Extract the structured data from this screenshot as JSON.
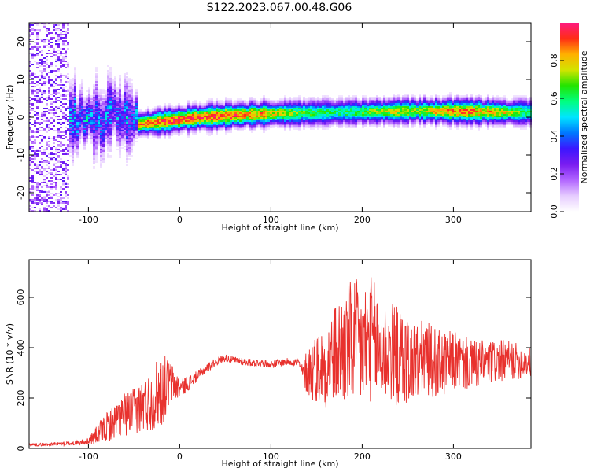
{
  "figure": {
    "title": "S122.2023.067.00.48.G06"
  },
  "colormap": {
    "stops": [
      "#ffffff",
      "#e6ccff",
      "#b266ff",
      "#7a1cf0",
      "#3b16ff",
      "#0077ff",
      "#00e5ff",
      "#00ff7f",
      "#22e400",
      "#d2e400",
      "#ffb000",
      "#ff2d16",
      "#ff1a80"
    ]
  },
  "chart_data": [
    {
      "type": "heatmap",
      "title": "",
      "xlabel": "Height of straight line (km)",
      "ylabel": "Frequency (Hz)",
      "xlim": [
        -165,
        385
      ],
      "ylim": [
        -25,
        25
      ],
      "xticks": [
        -100,
        0,
        100,
        200,
        300
      ],
      "yticks": [
        -20,
        -10,
        0,
        10,
        20
      ],
      "colorbar": {
        "label": "Normalized spectral amplitude",
        "range": [
          0,
          1
        ],
        "ticks": [
          0.0,
          0.2,
          0.4,
          0.6,
          0.8
        ]
      },
      "ridge": {
        "x": [
          -45,
          -20,
          0,
          20,
          40,
          60,
          80,
          100,
          120,
          140,
          160,
          180,
          200,
          220,
          240,
          260,
          280,
          300,
          320,
          340,
          360,
          380
        ],
        "frequency": [
          -1.8,
          -1.2,
          -0.6,
          -0.1,
          0.2,
          0.5,
          0.7,
          0.9,
          1.0,
          1.1,
          1.2,
          1.3,
          1.4,
          1.5,
          1.6,
          1.7,
          1.6,
          1.6,
          1.5,
          1.4,
          1.3,
          1.3
        ],
        "peak_amplitude": [
          0.85,
          0.9,
          0.95,
          0.9,
          0.9,
          0.9,
          0.85,
          0.8,
          0.7,
          0.65,
          0.6,
          0.6,
          0.65,
          0.7,
          0.75,
          0.7,
          0.8,
          0.85,
          0.85,
          0.8,
          0.75,
          0.6
        ]
      }
    },
    {
      "type": "line",
      "title": "",
      "xlabel": "Height of straight line (km)",
      "ylabel": "SNR (10 * v/v)",
      "xlim": [
        -165,
        385
      ],
      "ylim": [
        0,
        750
      ],
      "xticks": [
        -100,
        0,
        100,
        200,
        300
      ],
      "yticks": [
        0,
        200,
        400,
        600
      ],
      "color": "#e8312d",
      "series": [
        {
          "x": [
            -165,
            -150,
            -130,
            -110,
            -100,
            -90,
            -80,
            -70,
            -60,
            -50,
            -40,
            -30,
            -25,
            -20,
            -15,
            -10,
            0,
            10,
            20,
            30,
            40,
            50,
            60,
            70,
            80,
            90,
            100,
            110,
            120,
            130,
            135,
            140,
            150,
            160,
            170,
            180,
            190,
            200,
            210,
            220,
            230,
            240,
            250,
            260,
            270,
            280,
            290,
            300,
            320,
            340,
            360,
            385
          ],
          "values": [
            15,
            15,
            18,
            22,
            30,
            55,
            85,
            110,
            135,
            150,
            170,
            190,
            220,
            230,
            250,
            260,
            240,
            260,
            290,
            320,
            345,
            360,
            350,
            345,
            340,
            340,
            335,
            340,
            345,
            340,
            300,
            310,
            320,
            330,
            370,
            400,
            420,
            400,
            440,
            380,
            390,
            360,
            350,
            340,
            360,
            340,
            330,
            350,
            330,
            340,
            350,
            340
          ],
          "amplitude": [
            6,
            6,
            8,
            10,
            14,
            40,
            60,
            70,
            90,
            90,
            110,
            120,
            140,
            150,
            120,
            90,
            40,
            30,
            20,
            18,
            16,
            15,
            15,
            15,
            15,
            15,
            15,
            15,
            15,
            20,
            30,
            110,
            140,
            170,
            200,
            240,
            260,
            260,
            250,
            230,
            210,
            200,
            180,
            170,
            150,
            140,
            130,
            120,
            100,
            90,
            80,
            60
          ]
        }
      ]
    }
  ]
}
